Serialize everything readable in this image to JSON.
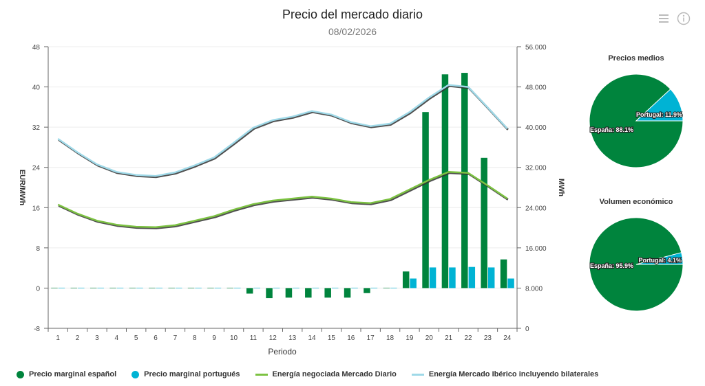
{
  "header": {
    "title": "Precio del mercado diario",
    "date": "08/02/2026",
    "menu_icon": "hamburger-menu-icon",
    "info_icon": "info-icon"
  },
  "colors": {
    "spain": "#00843d",
    "portugal": "#00b3d4",
    "energy_daily": "#7cc242",
    "energy_iberian": "#9fd9e8",
    "grid": "#e8e8e8",
    "axis": "#555555"
  },
  "chart_data": [
    {
      "type": "bar+line",
      "title": "Precio del mercado diario",
      "subtitle": "08/02/2026",
      "xlabel": "Periodo",
      "ylabel_left": "EUR/MWh",
      "ylabel_right": "MWh",
      "categories": [
        "1",
        "2",
        "3",
        "4",
        "5",
        "6",
        "7",
        "8",
        "9",
        "10",
        "11",
        "12",
        "13",
        "14",
        "15",
        "16",
        "17",
        "18",
        "19",
        "20",
        "21",
        "22",
        "23",
        "24"
      ],
      "ylim_left": [
        -8,
        48
      ],
      "yticks_left": [
        "48",
        "40",
        "32",
        "24",
        "16",
        "8",
        "0",
        "-8"
      ],
      "ytick_values_left": [
        48,
        40,
        32,
        24,
        16,
        8,
        0,
        -8
      ],
      "ylim_right": [
        0,
        56000
      ],
      "yticks_right": [
        "56.000",
        "48.000",
        "40.000",
        "32.000",
        "24.000",
        "16.000",
        "8.000",
        "0"
      ],
      "ytick_values_right": [
        56000,
        48000,
        40000,
        32000,
        24000,
        16000,
        8000,
        0
      ],
      "grid": true,
      "legend_position": "bottom-left",
      "series": [
        {
          "name": "Precio marginal español",
          "kind": "bar",
          "axis": "left",
          "color": "#00843d",
          "values": [
            0.1,
            0,
            0,
            0,
            0,
            0,
            0,
            0,
            0,
            -0.05,
            -1.1,
            -2.0,
            -1.9,
            -1.9,
            -1.9,
            -1.9,
            -1.0,
            0,
            3.3,
            35.0,
            42.5,
            42.8,
            25.9,
            5.7
          ]
        },
        {
          "name": "Precio marginal portugués",
          "kind": "bar",
          "axis": "left",
          "color": "#00b3d4",
          "values": [
            0,
            0,
            0,
            0,
            0,
            0,
            0,
            0,
            0,
            -0.05,
            -0.02,
            -0.02,
            -0.02,
            -0.02,
            -0.02,
            -0.02,
            -0.02,
            0,
            1.9,
            4.1,
            4.1,
            4.2,
            4.1,
            1.9
          ]
        },
        {
          "name": "Energía negociada Mercado Diario",
          "kind": "line",
          "axis": "right",
          "color": "#7cc242",
          "values": [
            24600,
            22800,
            21400,
            20600,
            20200,
            20100,
            20500,
            21400,
            22300,
            23600,
            24700,
            25400,
            25800,
            26200,
            25800,
            25100,
            24900,
            25700,
            27600,
            29500,
            31100,
            30900,
            28400,
            25800
          ]
        },
        {
          "name": "Energía Mercado Ibérico incluyendo bilaterales",
          "kind": "line",
          "axis": "right",
          "color": "#9fd9e8",
          "values": [
            37700,
            35000,
            32600,
            31100,
            30500,
            30300,
            31000,
            32400,
            34000,
            36900,
            39900,
            41400,
            42100,
            43200,
            42500,
            41000,
            40200,
            40700,
            43000,
            45900,
            48400,
            48000,
            43900,
            39700
          ]
        }
      ]
    },
    {
      "type": "pie",
      "title": "Precios medios",
      "slices": [
        {
          "label": "España: 88.1%",
          "name": "España",
          "value": 88.1,
          "color": "#00843d"
        },
        {
          "label": "Portugal: 11.9%",
          "name": "Portugal",
          "value": 11.9,
          "color": "#00b3d4"
        }
      ]
    },
    {
      "type": "pie",
      "title": "Volumen económico",
      "slices": [
        {
          "label": "España: 95.9%",
          "name": "España",
          "value": 95.9,
          "color": "#00843d"
        },
        {
          "label": "Portugal: 4.1%",
          "name": "Portugal",
          "value": 4.1,
          "color": "#00b3d4"
        }
      ]
    }
  ],
  "legend": [
    {
      "label": "Precio marginal español",
      "marker": "dot",
      "color": "#00843d"
    },
    {
      "label": "Precio marginal portugués",
      "marker": "dot",
      "color": "#00b3d4"
    },
    {
      "label": "Energía negociada Mercado Diario",
      "marker": "line",
      "color": "#7cc242"
    },
    {
      "label": "Energía Mercado Ibérico incluyendo bilaterales",
      "marker": "line",
      "color": "#9fd9e8"
    }
  ]
}
